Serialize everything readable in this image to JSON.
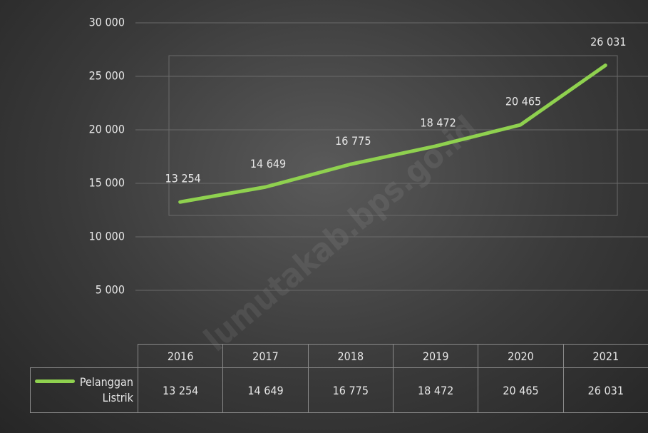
{
  "chart_data": {
    "type": "line",
    "categories": [
      "2016",
      "2017",
      "2018",
      "2019",
      "2020",
      "2021"
    ],
    "series": [
      {
        "name": "Pelanggan Listrik",
        "color": "#8fd14f",
        "values": [
          13254,
          14649,
          16775,
          18472,
          20465,
          26031
        ],
        "value_labels": [
          "13 254",
          "14 649",
          "16 775",
          "18 472",
          "20 465",
          "26 031"
        ]
      }
    ],
    "ylim": [
      0,
      30000
    ],
    "yticks": [
      {
        "value": 5000,
        "label": "5 000"
      },
      {
        "value": 10000,
        "label": "10 000"
      },
      {
        "value": 15000,
        "label": "15 000"
      },
      {
        "value": 20000,
        "label": "20 000"
      },
      {
        "value": 25000,
        "label": "25 000"
      },
      {
        "value": 30000,
        "label": "30 000"
      }
    ],
    "grid": true,
    "data_table": true,
    "watermark": "lumutakab.bps.go.id"
  }
}
